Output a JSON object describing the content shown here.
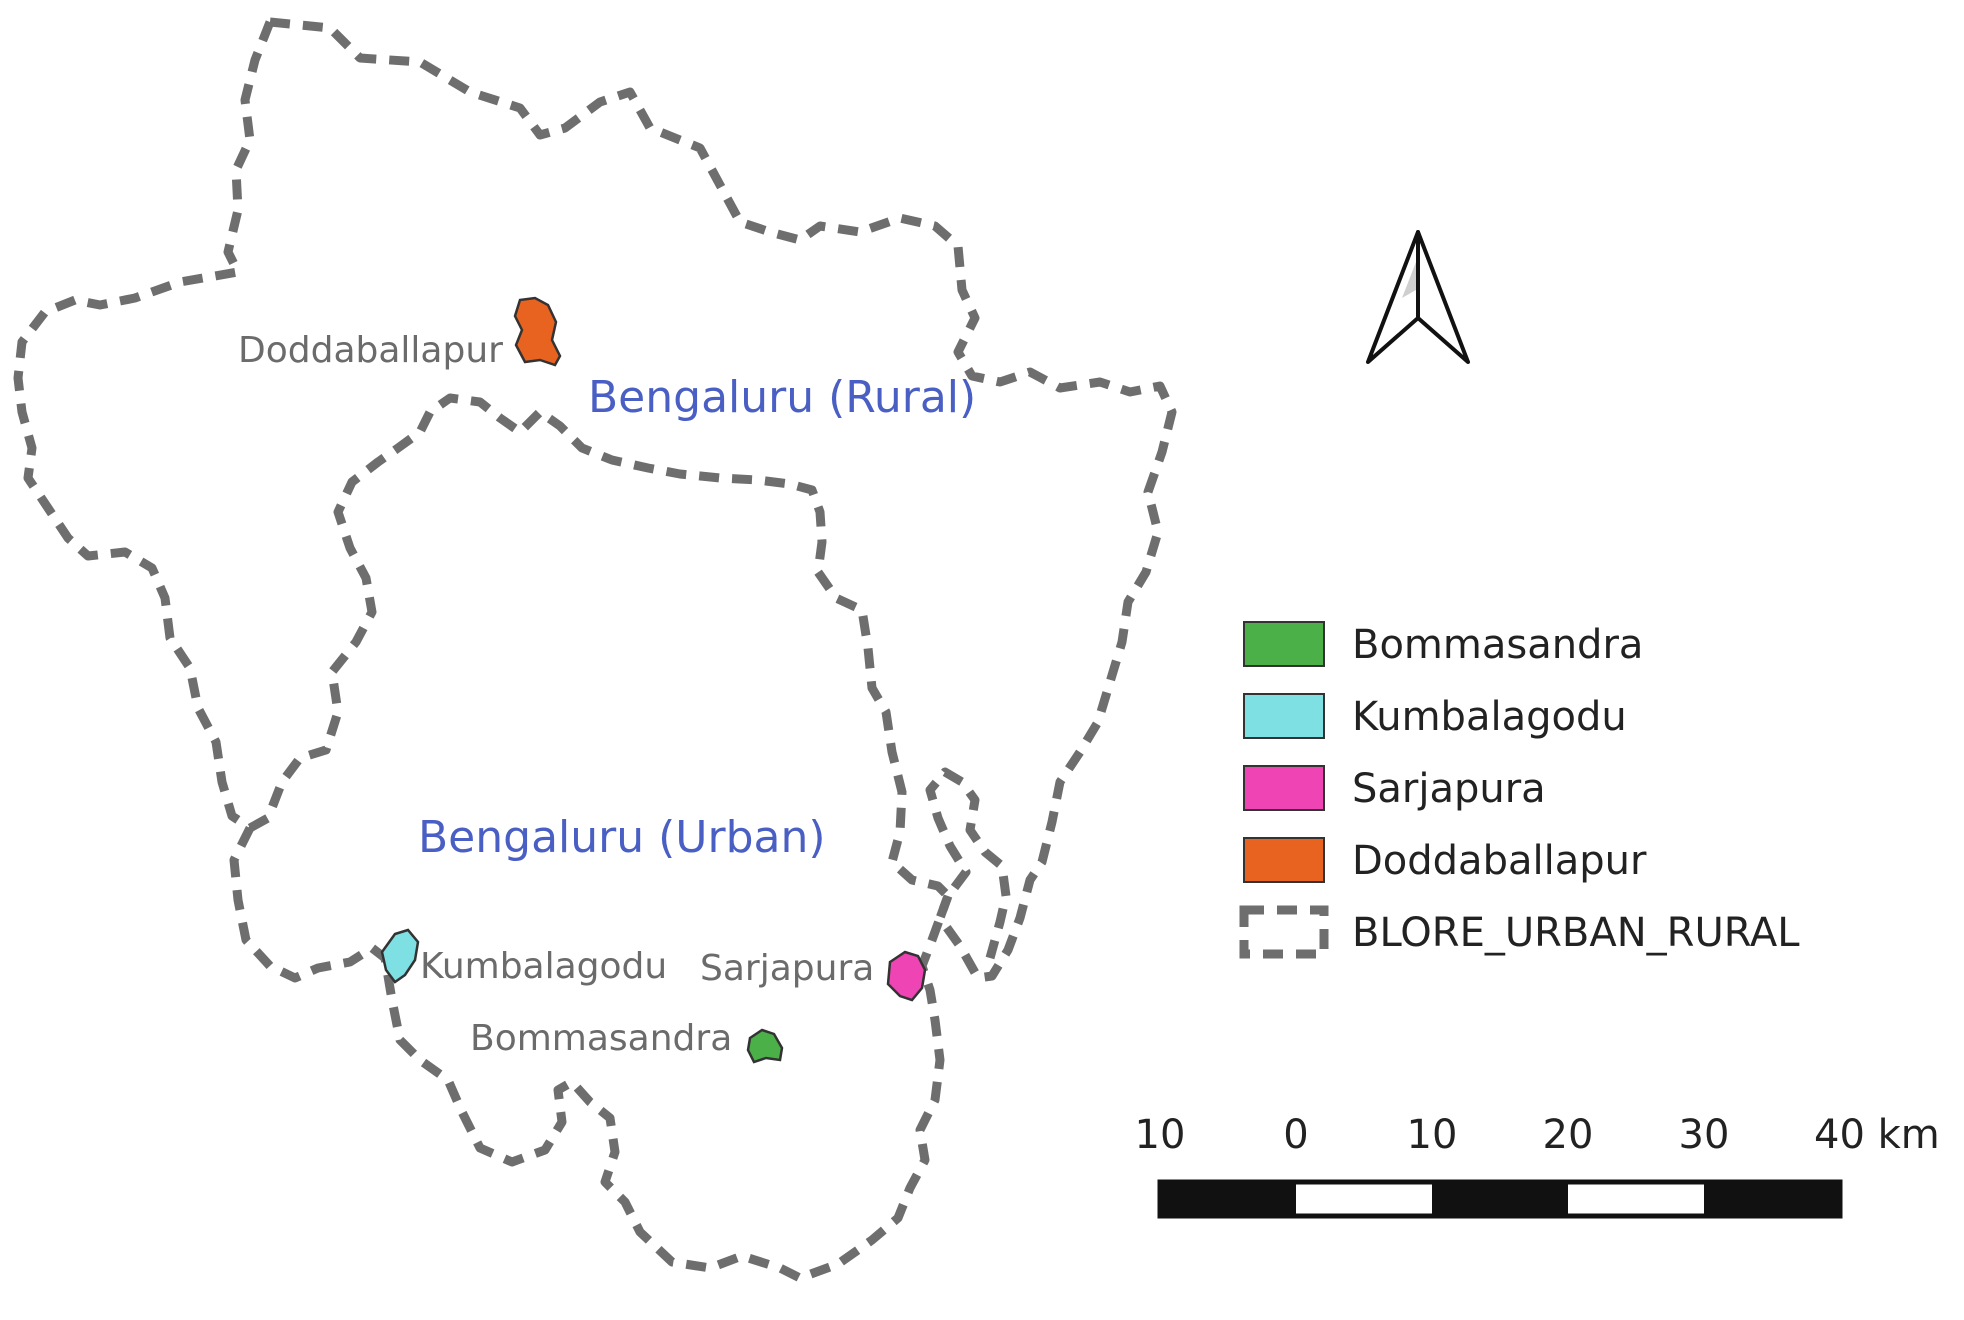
{
  "regions": {
    "rural_label": "Bengaluru (Rural)",
    "urban_label": "Bengaluru (Urban)"
  },
  "places": [
    {
      "id": "doddaballapur",
      "label": "Doddaballapur",
      "color": "#e8631f"
    },
    {
      "id": "kumbalagodu",
      "label": "Kumbalagodu",
      "color": "#7fe0e4"
    },
    {
      "id": "sarjapura",
      "label": "Sarjapura",
      "color": "#ee44b4"
    },
    {
      "id": "bommasandra",
      "label": "Bommasandra",
      "color": "#4cb048"
    }
  ],
  "legend": {
    "items": [
      {
        "label": "Bommasandra",
        "color": "#4cb048"
      },
      {
        "label": "Kumbalagodu",
        "color": "#7fe0e4"
      },
      {
        "label": "Sarjapura",
        "color": "#ee44b4"
      },
      {
        "label": "Doddaballapur",
        "color": "#e8631f"
      },
      {
        "label": "BLORE_URBAN_RURAL",
        "color": "#6e6e6e",
        "style": "dashed-outline"
      }
    ]
  },
  "scale_bar": {
    "ticks": [
      "10",
      "0",
      "10",
      "20",
      "30",
      "40 km"
    ]
  },
  "north_arrow": {
    "icon": "north-arrow-icon"
  },
  "colors": {
    "boundary": "#6e6e6e",
    "region_label": "#4a5fc4",
    "place_label": "#6b6b6b"
  }
}
